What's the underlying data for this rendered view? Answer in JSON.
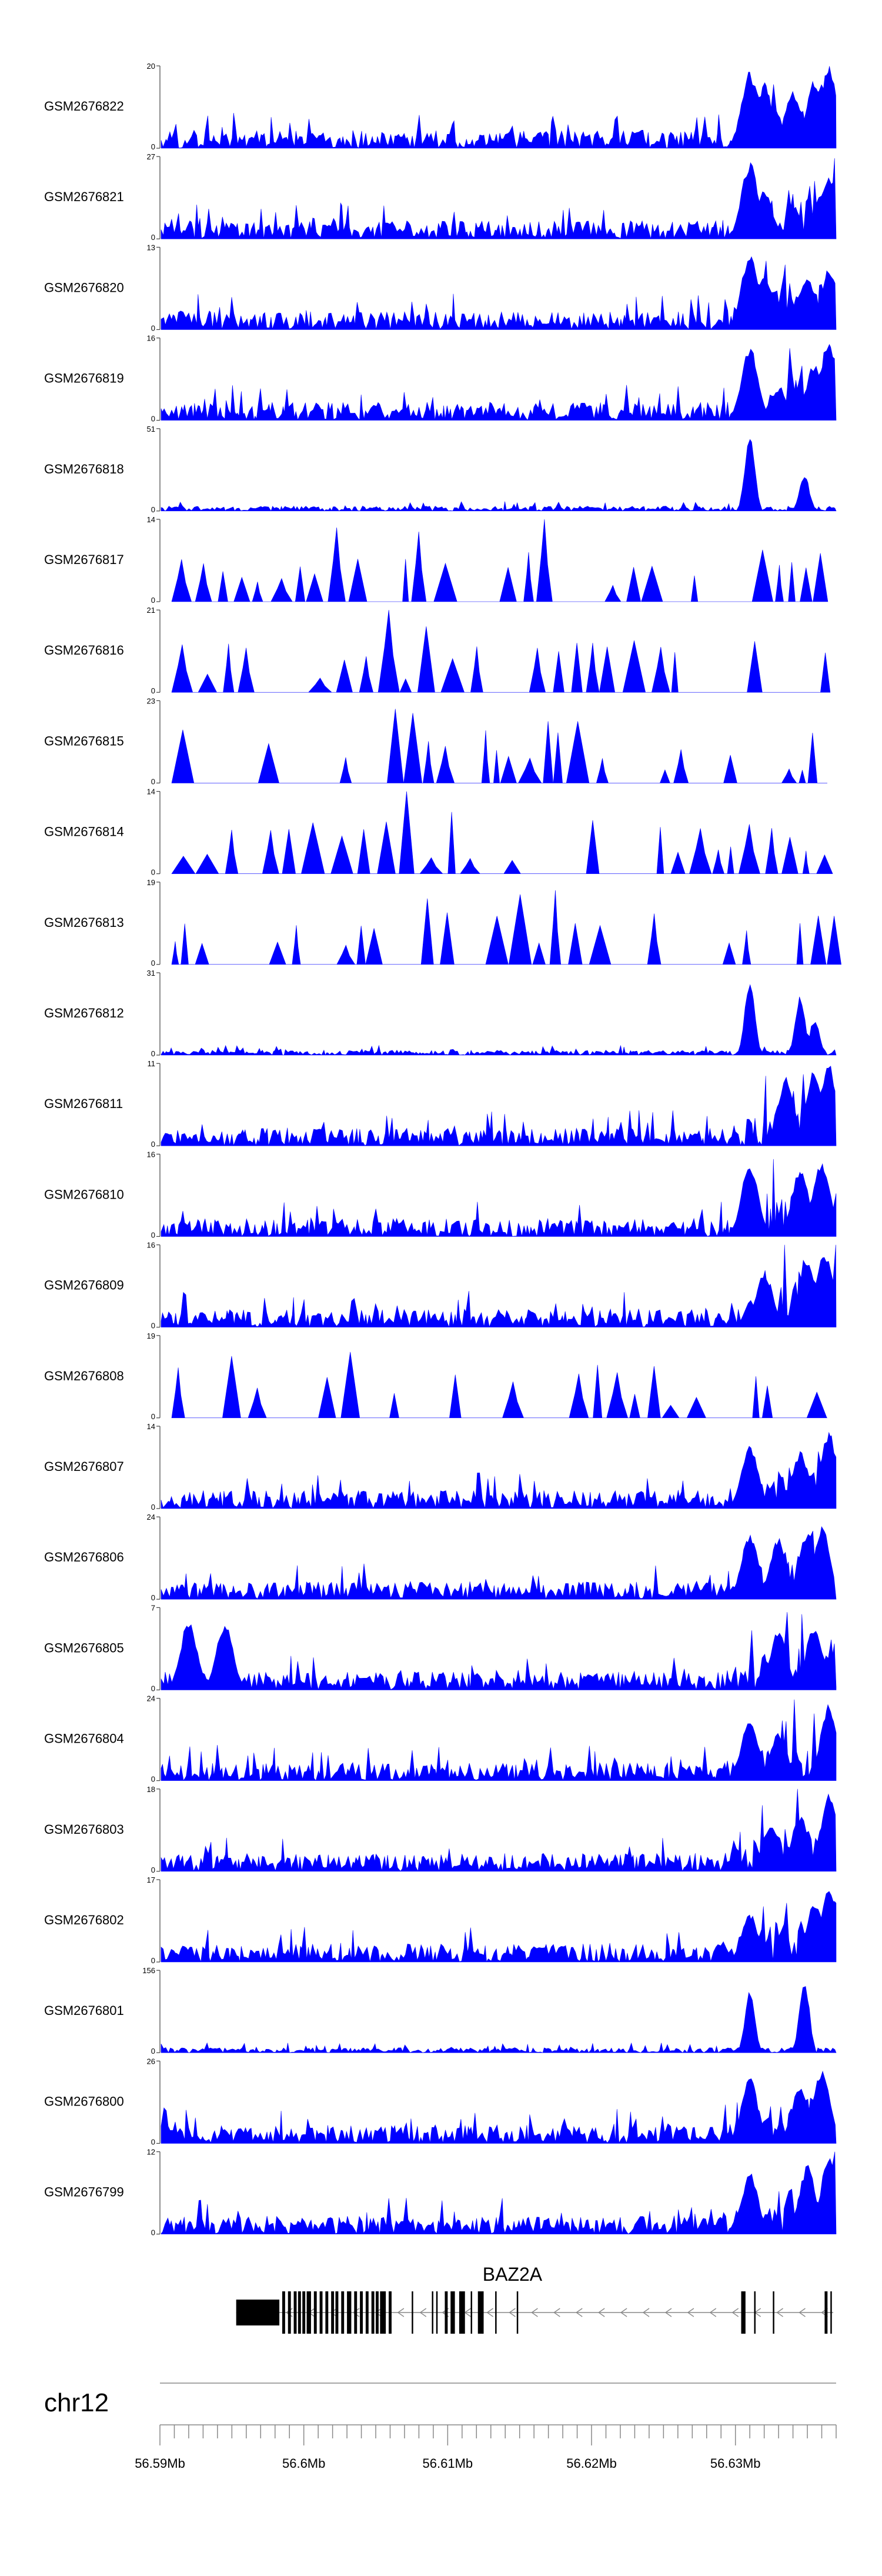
{
  "chart_data": {
    "type": "area",
    "title": "",
    "chromosome": "chr12",
    "gene": "BAZ2A",
    "xlim_mb": [
      56.59,
      56.637
    ],
    "x_ticks_mb": [
      56.59,
      56.6,
      56.61,
      56.62,
      56.63
    ],
    "x_tick_labels": [
      "56.59Mb",
      "56.6Mb",
      "56.61Mb",
      "56.62Mb",
      "56.63Mb"
    ],
    "color": "#0000ff",
    "series": [
      {
        "name": "GSM2676822",
        "ymax": 20,
        "ymin": 0,
        "style": "dense",
        "peaks_mb": [
          56.631,
          56.632,
          56.634,
          56.6355,
          56.6365
        ],
        "peak_frac": [
          0.95,
          0.8,
          0.7,
          0.85,
          1.0
        ]
      },
      {
        "name": "GSM2676821",
        "ymax": 27,
        "ymin": 0,
        "style": "dense",
        "peaks_mb": [
          56.631,
          56.632,
          56.636,
          56.6365
        ],
        "peak_frac": [
          0.95,
          0.6,
          0.55,
          0.8
        ]
      },
      {
        "name": "GSM2676820",
        "ymax": 13,
        "ymin": 0,
        "style": "dense",
        "peaks_mb": [
          56.631,
          56.632,
          56.635,
          56.6365
        ],
        "peak_frac": [
          0.95,
          0.7,
          0.65,
          0.75
        ]
      },
      {
        "name": "GSM2676819",
        "ymax": 16,
        "ymin": 0,
        "style": "dense",
        "peaks_mb": [
          56.631,
          56.633,
          56.6355,
          56.6365
        ],
        "peak_frac": [
          0.9,
          0.4,
          0.7,
          1.0
        ]
      },
      {
        "name": "GSM2676818",
        "ymax": 51,
        "ymin": 0,
        "style": "sparse",
        "peaks_mb": [
          56.631,
          56.6348
        ],
        "peak_frac": [
          1.0,
          0.45
        ]
      },
      {
        "name": "GSM2676817",
        "ymax": 14,
        "ymin": 0,
        "style": "spiky",
        "peaks_mb": [
          56.602,
          56.6085,
          56.6165,
          56.619
        ],
        "peak_frac": [
          0.9,
          0.85,
          1.0,
          0.9
        ]
      },
      {
        "name": "GSM2676816",
        "ymax": 21,
        "ymin": 0,
        "style": "spiky",
        "peaks_mb": [
          56.606,
          56.608,
          56.6195
        ],
        "peak_frac": [
          1.0,
          0.8,
          0.6
        ]
      },
      {
        "name": "GSM2676815",
        "ymax": 23,
        "ymin": 0,
        "style": "spiky",
        "peaks_mb": [
          56.606,
          56.6075,
          56.6165,
          56.6185
        ],
        "peak_frac": [
          0.9,
          0.85,
          0.75,
          0.75
        ]
      },
      {
        "name": "GSM2676814",
        "ymax": 14,
        "ymin": 0,
        "style": "spiky",
        "peaks_mb": [
          56.607,
          56.61,
          56.619
        ],
        "peak_frac": [
          1.0,
          0.75,
          0.6
        ]
      },
      {
        "name": "GSM2676813",
        "ymax": 19,
        "ymin": 0,
        "style": "spiky",
        "peaks_mb": [
          56.607,
          56.609,
          56.6125,
          56.6155,
          56.618
        ],
        "peak_frac": [
          0.9,
          0.8,
          0.8,
          0.85,
          0.9
        ]
      },
      {
        "name": "GSM2676812",
        "ymax": 31,
        "ymin": 0,
        "style": "sparse",
        "peaks_mb": [
          56.631,
          56.6345,
          56.6355
        ],
        "peak_frac": [
          1.0,
          0.75,
          0.45
        ]
      },
      {
        "name": "GSM2676811",
        "ymax": 11,
        "ymin": 0,
        "style": "dense",
        "peaks_mb": [
          56.6335,
          56.6355,
          56.6365
        ],
        "peak_frac": [
          0.85,
          0.95,
          1.0
        ]
      },
      {
        "name": "GSM2676810",
        "ymax": 16,
        "ymin": 0,
        "style": "dense",
        "peaks_mb": [
          56.631,
          56.6345,
          56.636
        ],
        "peak_frac": [
          0.9,
          0.85,
          0.95
        ]
      },
      {
        "name": "GSM2676809",
        "ymax": 16,
        "ymin": 0,
        "style": "dense",
        "peaks_mb": [
          56.632,
          56.635,
          56.6362
        ],
        "peak_frac": [
          0.7,
          0.85,
          0.95
        ]
      },
      {
        "name": "GSM2676808",
        "ymax": 19,
        "ymin": 0,
        "style": "spiky",
        "peaks_mb": [
          56.595,
          56.603,
          56.608,
          56.612
        ],
        "peak_frac": [
          0.75,
          0.8,
          1.0,
          0.75
        ]
      },
      {
        "name": "GSM2676807",
        "ymax": 14,
        "ymin": 0,
        "style": "dense",
        "peaks_mb": [
          56.631,
          56.6345,
          56.6365
        ],
        "peak_frac": [
          0.8,
          0.7,
          0.95
        ]
      },
      {
        "name": "GSM2676806",
        "ymax": 24,
        "ymin": 0,
        "style": "dense",
        "peaks_mb": [
          56.631,
          56.633,
          56.635,
          56.636
        ],
        "peak_frac": [
          0.8,
          0.75,
          0.85,
          0.9
        ]
      },
      {
        "name": "GSM2676805",
        "ymax": 7,
        "ymin": 0,
        "style": "dense",
        "peaks_mb": [
          56.592,
          56.5945,
          56.633,
          56.6355
        ],
        "peak_frac": [
          0.85,
          0.85,
          0.75,
          0.8
        ]
      },
      {
        "name": "GSM2676804",
        "ymax": 24,
        "ymin": 0,
        "style": "dense",
        "peaks_mb": [
          56.631,
          56.633,
          56.6365
        ],
        "peak_frac": [
          0.8,
          0.6,
          0.95
        ]
      },
      {
        "name": "GSM2676803",
        "ymax": 18,
        "ymin": 0,
        "style": "dense",
        "peaks_mb": [
          56.6325,
          56.6345,
          56.6365
        ],
        "peak_frac": [
          0.6,
          0.7,
          0.95
        ]
      },
      {
        "name": "GSM2676802",
        "ymax": 17,
        "ymin": 0,
        "style": "dense",
        "peaks_mb": [
          56.631,
          56.6355,
          56.6365
        ],
        "peak_frac": [
          0.6,
          0.75,
          0.95
        ]
      },
      {
        "name": "GSM2676801",
        "ymax": 156,
        "ymin": 0,
        "style": "sparse",
        "peaks_mb": [
          56.631,
          56.6348
        ],
        "peak_frac": [
          0.8,
          0.95
        ]
      },
      {
        "name": "GSM2676800",
        "ymax": 26,
        "ymin": 0,
        "style": "dense",
        "peaks_mb": [
          56.631,
          56.6345,
          56.636
        ],
        "peak_frac": [
          0.8,
          0.75,
          0.9
        ]
      },
      {
        "name": "GSM2676799",
        "ymax": 12,
        "ymin": 0,
        "style": "dense",
        "peaks_mb": [
          56.631,
          56.635,
          56.6365
        ],
        "peak_frac": [
          0.75,
          0.85,
          0.95
        ]
      }
    ],
    "gene_model": {
      "name": "BAZ2A",
      "strand": "-",
      "start_mb": 56.5953,
      "end_mb": 56.6368,
      "exons_mb": [
        [
          56.5953,
          56.5983
        ],
        [
          56.5985,
          56.5987
        ],
        [
          56.5989,
          56.5991
        ],
        [
          56.5993,
          56.5995
        ],
        [
          56.5996,
          56.5998
        ],
        [
          56.5999,
          56.6001
        ],
        [
          56.6002,
          56.6005
        ],
        [
          56.6007,
          56.6009
        ],
        [
          56.6011,
          56.6013
        ],
        [
          56.6015,
          56.6017
        ],
        [
          56.6019,
          56.6021
        ],
        [
          56.6022,
          56.6024
        ],
        [
          56.6026,
          56.6028
        ],
        [
          56.603,
          56.6033
        ],
        [
          56.6035,
          56.6037
        ],
        [
          56.6039,
          56.6041
        ],
        [
          56.6043,
          56.6045
        ],
        [
          56.6047,
          56.6049
        ],
        [
          56.605,
          56.6052
        ],
        [
          56.6053,
          56.6057
        ],
        [
          56.6059,
          56.6061
        ],
        [
          56.6075,
          56.6076
        ],
        [
          56.6089,
          56.609
        ],
        [
          56.6092,
          56.6093
        ],
        [
          56.6098,
          56.61
        ],
        [
          56.6102,
          56.6105
        ],
        [
          56.6108,
          56.6112
        ],
        [
          56.6116,
          56.6117
        ],
        [
          56.6121,
          56.6125
        ],
        [
          56.6133,
          56.6134
        ],
        [
          56.6148,
          56.6149
        ],
        [
          56.6304,
          56.6307
        ],
        [
          56.6313,
          56.6314
        ],
        [
          56.6326,
          56.6327
        ],
        [
          56.6362,
          56.6364
        ],
        [
          56.6366,
          56.6367
        ]
      ]
    }
  }
}
